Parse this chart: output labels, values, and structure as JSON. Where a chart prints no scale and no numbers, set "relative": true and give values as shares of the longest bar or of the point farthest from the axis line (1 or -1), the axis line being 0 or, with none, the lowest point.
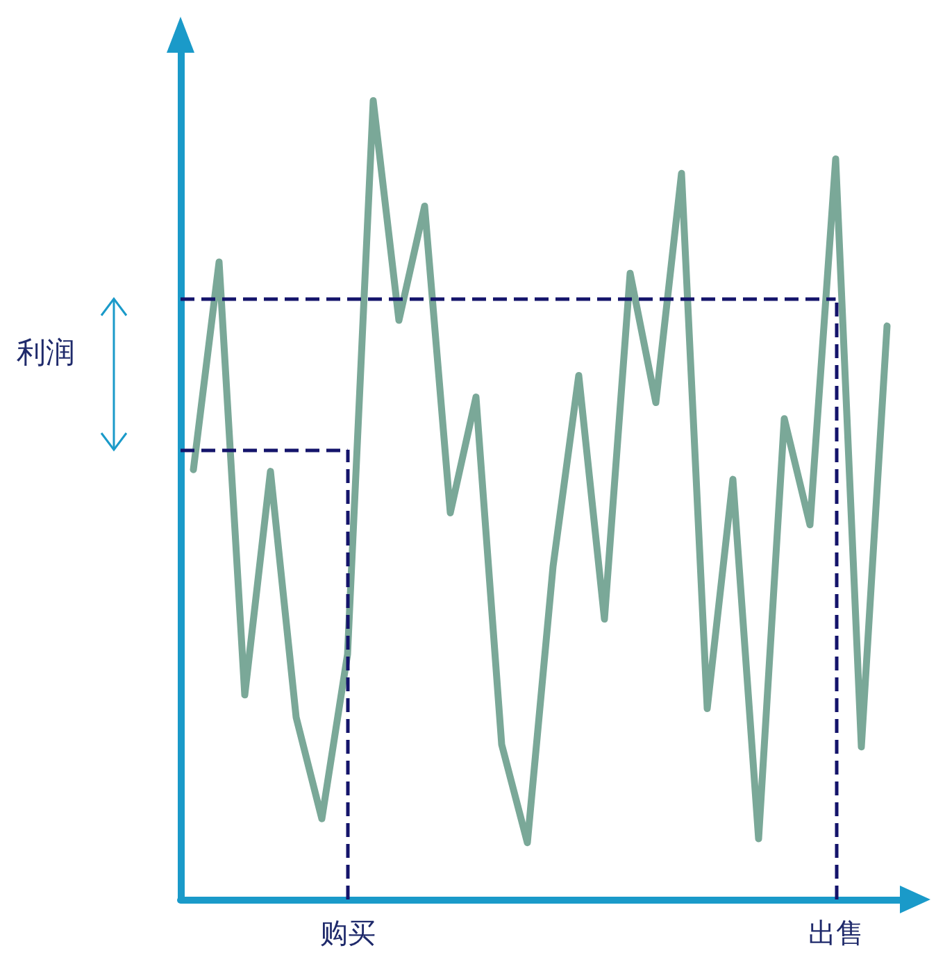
{
  "chart_data": {
    "type": "line",
    "relative": true,
    "grid": false,
    "marker": "none",
    "line_style": "solid",
    "categories": [
      null,
      null,
      null,
      null,
      null,
      null,
      "购买",
      null,
      null,
      null,
      null,
      null,
      null,
      null,
      null,
      null,
      null,
      null,
      null,
      null,
      null,
      null,
      null,
      null,
      null,
      "出售",
      null,
      null
    ],
    "series": [
      {
        "color": "#7aa898",
        "values": [
          0.538,
          0.798,
          0.256,
          0.536,
          0.228,
          0.101,
          0.307,
          1,
          0.725,
          0.868,
          0.484,
          0.629,
          0.194,
          0.071,
          0.417,
          0.656,
          0.351,
          0.784,
          0.622,
          0.909,
          0.239,
          0.526,
          0.076,
          0.602,
          0.469,
          0.927,
          0.191,
          0.718
        ]
      }
    ],
    "ref_lines": [
      {
        "axis": "y",
        "value": 0.563,
        "color": "#14146b",
        "line_style": "dashed"
      },
      {
        "axis": "y",
        "value": 0.752,
        "color": "#14146b",
        "line_style": "dashed"
      },
      {
        "axis": "x",
        "value": "购买",
        "color": "#14146b",
        "line_style": "dashed"
      },
      {
        "axis": "x",
        "value": "出售",
        "color": "#14146b",
        "line_style": "dashed"
      }
    ],
    "annotations": [
      "利润"
    ]
  }
}
